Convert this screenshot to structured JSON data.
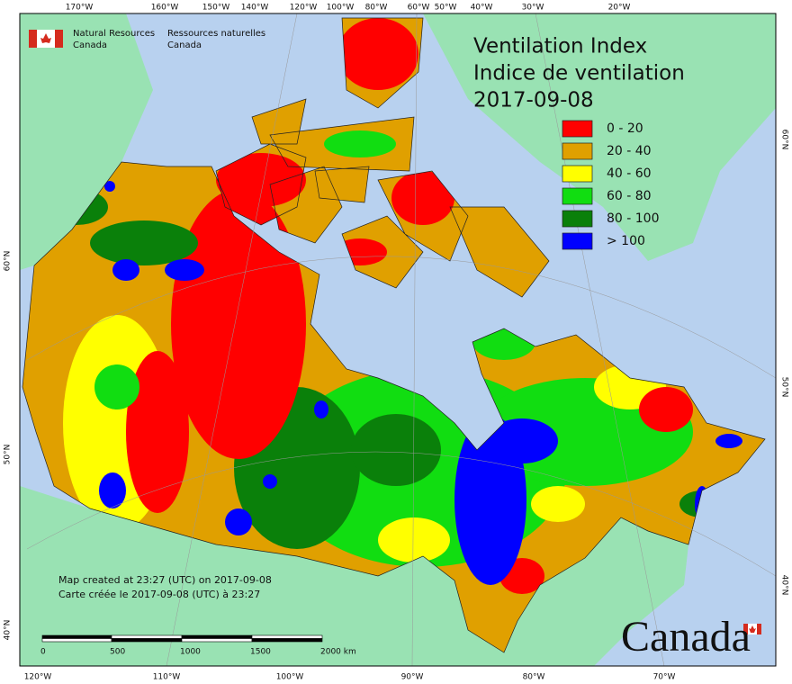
{
  "header": {
    "department_en": [
      "Natural Resources",
      "Canada"
    ],
    "department_fr": [
      "Ressources naturelles",
      "Canada"
    ]
  },
  "title": [
    "Ventilation Index",
    "Indice de ventilation",
    "2017-09-08"
  ],
  "legend": [
    {
      "label": "0 - 20",
      "color": "#ff0000"
    },
    {
      "label": "20 - 40",
      "color": "#e0a000"
    },
    {
      "label": "40 - 60",
      "color": "#ffff00"
    },
    {
      "label": "60 - 80",
      "color": "#11dd11"
    },
    {
      "label": "80 - 100",
      "color": "#0a800a"
    },
    {
      "label": "> 100",
      "color": "#0000ff"
    }
  ],
  "graticule": {
    "top": [
      "170°W",
      "160°W",
      "150°W",
      "140°W",
      "120°W",
      "100°W",
      "80°W",
      "60°W",
      "50°W",
      "40°W",
      "30°W",
      "20°W"
    ],
    "bottom": [
      "120°W",
      "110°W",
      "100°W",
      "90°W",
      "80°W",
      "70°W"
    ],
    "left": [
      "60°N",
      "50°N",
      "40°N"
    ],
    "right": [
      "60°N",
      "50°N",
      "40°N"
    ]
  },
  "notes": [
    "Map created at 23:27 (UTC) on 2017-09-08",
    "Carte créée le 2017-09-08 (UTC) à 23:27"
  ],
  "scale_bar": [
    "0",
    "500",
    "1000",
    "1500",
    "2000 km"
  ],
  "wordmark": "Canada"
}
